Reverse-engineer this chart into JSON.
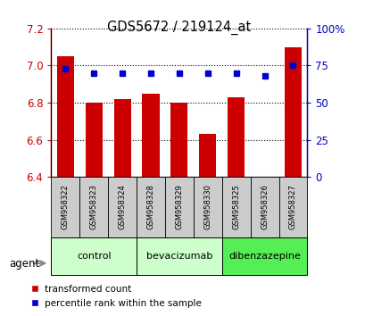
{
  "title": "GDS5672 / 219124_at",
  "samples": [
    "GSM958322",
    "GSM958323",
    "GSM958324",
    "GSM958328",
    "GSM958329",
    "GSM958330",
    "GSM958325",
    "GSM958326",
    "GSM958327"
  ],
  "red_values": [
    7.05,
    6.8,
    6.82,
    6.85,
    6.8,
    6.63,
    6.83,
    6.4,
    7.1
  ],
  "blue_values": [
    73,
    70,
    70,
    70,
    70,
    70,
    70,
    68,
    75
  ],
  "group_labels": [
    "control",
    "bevacizumab",
    "dibenzazepine"
  ],
  "group_ranges": [
    [
      0,
      3
    ],
    [
      3,
      6
    ],
    [
      6,
      9
    ]
  ],
  "group_colors": [
    "#ccffcc",
    "#ccffcc",
    "#55ee55"
  ],
  "ylim_left": [
    6.4,
    7.2
  ],
  "ylim_right": [
    0,
    100
  ],
  "yticks_left": [
    6.4,
    6.6,
    6.8,
    7.0,
    7.2
  ],
  "yticks_right": [
    0,
    25,
    50,
    75,
    100
  ],
  "ytick_labels_right": [
    "0",
    "25",
    "50",
    "75",
    "100%"
  ],
  "bar_color": "#cc0000",
  "dot_color": "#0000cc",
  "agent_label": "agent",
  "sample_box_color": "#cccccc",
  "left_tick_color": "#cc0000",
  "right_tick_color": "#0000cc"
}
